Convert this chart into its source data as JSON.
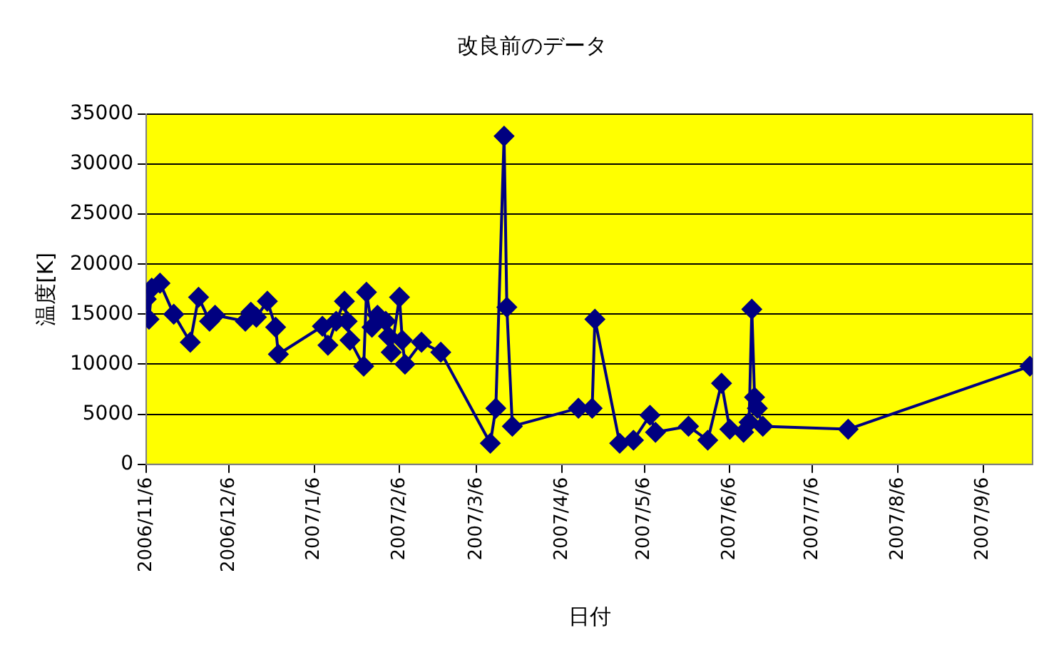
{
  "chart_data": {
    "type": "line",
    "title": "改良前のデータ",
    "xlabel": "日付",
    "ylabel": "温度[K]",
    "x": [
      "2006-11-06",
      "2006-11-07",
      "2006-11-08",
      "2006-11-11",
      "2006-11-16",
      "2006-11-22",
      "2006-11-25",
      "2006-11-29",
      "2006-12-01",
      "2006-12-12",
      "2006-12-14",
      "2006-12-16",
      "2006-12-20",
      "2006-12-23",
      "2006-12-24",
      "2007-01-09",
      "2007-01-11",
      "2007-01-14",
      "2007-01-17",
      "2007-01-18",
      "2007-01-19",
      "2007-01-24",
      "2007-01-25",
      "2007-01-27",
      "2007-01-29",
      "2007-02-01",
      "2007-02-02",
      "2007-02-03",
      "2007-02-06",
      "2007-02-07",
      "2007-02-08",
      "2007-02-14",
      "2007-02-21",
      "2007-03-11",
      "2007-03-13",
      "2007-03-16",
      "2007-03-17",
      "2007-03-19",
      "2007-04-12",
      "2007-04-17",
      "2007-04-18",
      "2007-04-27",
      "2007-05-02",
      "2007-05-08",
      "2007-05-10",
      "2007-05-22",
      "2007-05-29",
      "2007-06-03",
      "2007-06-06",
      "2007-06-11",
      "2007-06-13",
      "2007-06-14",
      "2007-06-15",
      "2007-06-16",
      "2007-06-18",
      "2007-07-19",
      "2007-09-23"
    ],
    "series": [
      {
        "color": "#000080",
        "values": [
          16500,
          14500,
          17600,
          18100,
          15000,
          12200,
          16700,
          14300,
          14900,
          14300,
          15200,
          14700,
          16300,
          13700,
          11000,
          13800,
          11900,
          14300,
          16300,
          14300,
          12400,
          9800,
          17200,
          13700,
          14900,
          14300,
          12800,
          11200,
          16700,
          12400,
          10000,
          12200,
          11200,
          2100,
          5600,
          32800,
          15700,
          3800,
          5600,
          5600,
          14500,
          2100,
          2400,
          4900,
          3200,
          3800,
          2400,
          8100,
          3500,
          3200,
          4200,
          15500,
          6700,
          5600,
          3800,
          3500,
          9800
        ]
      }
    ],
    "xlim": [
      "2006-11-06",
      "2007-09-24"
    ],
    "xticks": [
      {
        "value": "2006-11-06",
        "label": "2006/11/6"
      },
      {
        "value": "2006-12-06",
        "label": "2006/12/6"
      },
      {
        "value": "2007-01-06",
        "label": "2007/1/6"
      },
      {
        "value": "2007-02-06",
        "label": "2007/2/6"
      },
      {
        "value": "2007-03-06",
        "label": "2007/3/6"
      },
      {
        "value": "2007-04-06",
        "label": "2007/4/6"
      },
      {
        "value": "2007-05-06",
        "label": "2007/5/6"
      },
      {
        "value": "2007-06-06",
        "label": "2007/6/6"
      },
      {
        "value": "2007-07-06",
        "label": "2007/7/6"
      },
      {
        "value": "2007-08-06",
        "label": "2007/8/6"
      },
      {
        "value": "2007-09-06",
        "label": "2007/9/6"
      }
    ],
    "ylim": [
      0,
      35000
    ],
    "yticks": [
      0,
      5000,
      10000,
      15000,
      20000,
      25000,
      30000,
      35000
    ],
    "grid": "y",
    "legend": false,
    "marker": "diamond",
    "line_style": "solid"
  }
}
